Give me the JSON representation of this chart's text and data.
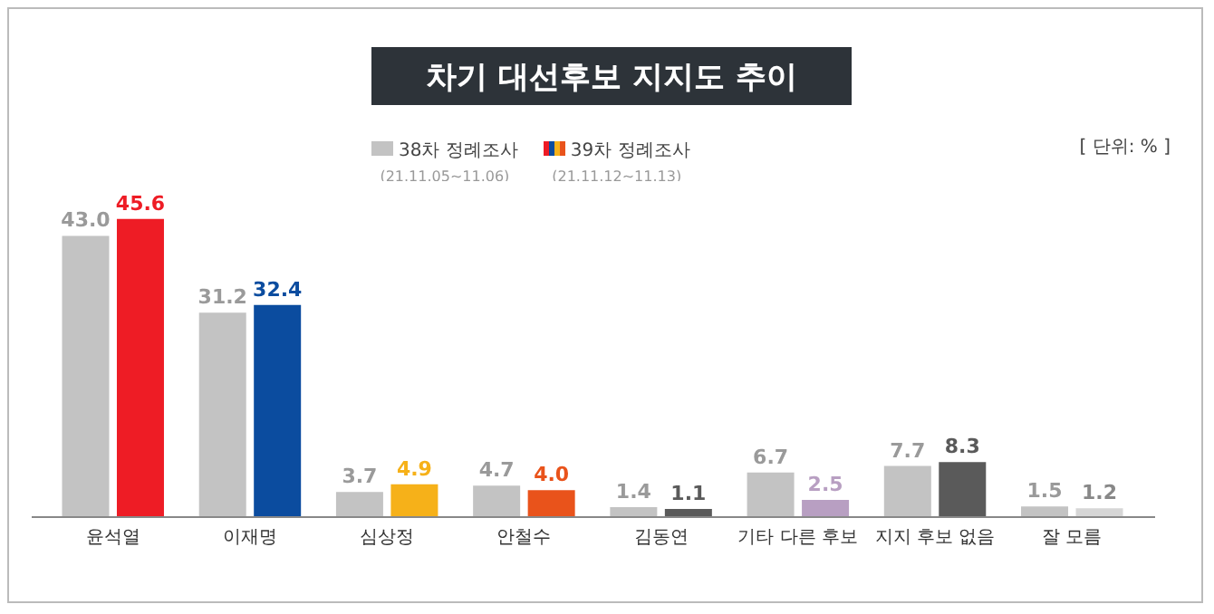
{
  "chart_data": {
    "type": "bar",
    "title": "차기 대선후보 지지도 추이",
    "categories": [
      "윤석열",
      "이재명",
      "심상정",
      "안철수",
      "김동연",
      "기타 다른 후보",
      "지지 후보 없음",
      "잘 모름"
    ],
    "series": [
      {
        "name": "38차 정례조사",
        "color": "#c3c3c3",
        "values": [
          43.0,
          31.2,
          3.7,
          4.7,
          1.4,
          6.7,
          7.7,
          1.5
        ],
        "value_labels": [
          "43.0",
          "31.2",
          "3.7",
          "4.7",
          "1.4",
          "6.7",
          "7.7",
          "1.5"
        ]
      },
      {
        "name": "39차 정례조사",
        "colors": [
          "#ee1c25",
          "#0b4c9f",
          "#f6b119",
          "#e9531b",
          "#5a5a5a",
          "#b89fc2",
          "#5a5a5a",
          "#d6d6d6"
        ],
        "values": [
          45.6,
          32.4,
          4.9,
          4.0,
          1.1,
          2.5,
          8.3,
          1.2
        ],
        "value_labels": [
          "45.6",
          "32.4",
          "4.9",
          "4.0",
          "1.1",
          "2.5",
          "8.3",
          "1.2"
        ]
      }
    ],
    "legend": "top",
    "grid": false,
    "annotations": [
      "(21.11.05~11.06)",
      "(21.11.12~11.13)",
      "[ 단위: % ]"
    ]
  }
}
